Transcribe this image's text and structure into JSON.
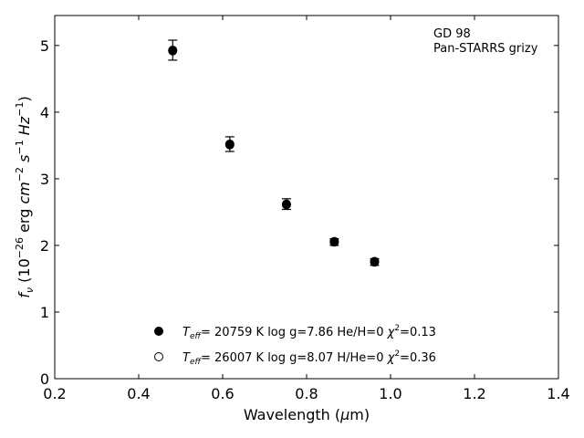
{
  "chart_data": {
    "type": "scatter",
    "annotation": {
      "line1": "GD 98",
      "line2": "Pan-STARRS grizy"
    },
    "xlabel": "Wavelength (μm)",
    "ylabel": "f_ν (10^-26 erg cm^-2 s^-1 Hz^-1)",
    "xlim": [
      0.2,
      1.4
    ],
    "ylim": [
      0,
      5.45
    ],
    "xticks": [
      0.2,
      0.4,
      0.6,
      0.8,
      1.0,
      1.2,
      1.4
    ],
    "xtick_labels": [
      "0.2",
      "0.4",
      "0.6",
      "0.8",
      "1.0",
      "1.2",
      "1.4"
    ],
    "yticks": [
      0,
      1,
      2,
      3,
      4,
      5
    ],
    "ytick_labels": [
      "0",
      "1",
      "2",
      "3",
      "4",
      "5"
    ],
    "grid": false,
    "legend_position": "bottom-center",
    "observed": {
      "x": [
        0.481,
        0.617,
        0.752,
        0.866,
        0.962
      ],
      "y": [
        4.93,
        3.52,
        2.62,
        2.05,
        1.75
      ],
      "yerr": [
        0.15,
        0.11,
        0.08,
        0.05,
        0.05
      ]
    },
    "series": [
      {
        "marker": "filled-circle",
        "teff": "20759 K",
        "logg": "log g=7.86",
        "comp": "He/H=0",
        "chi2": "=0.13",
        "x": [
          0.481,
          0.617,
          0.752,
          0.866,
          0.962
        ],
        "y": [
          4.93,
          3.52,
          2.61,
          2.05,
          1.75
        ]
      },
      {
        "marker": "open-circle",
        "teff": "26007 K",
        "logg": "log g=8.07",
        "comp": "H/He=0",
        "chi2": "=0.36",
        "x": [
          0.481,
          0.617,
          0.752,
          0.866,
          0.962
        ],
        "y": [
          4.92,
          3.51,
          2.62,
          2.06,
          1.76
        ]
      }
    ],
    "colors": {
      "marker": "#000000",
      "background": "#ffffff"
    }
  }
}
